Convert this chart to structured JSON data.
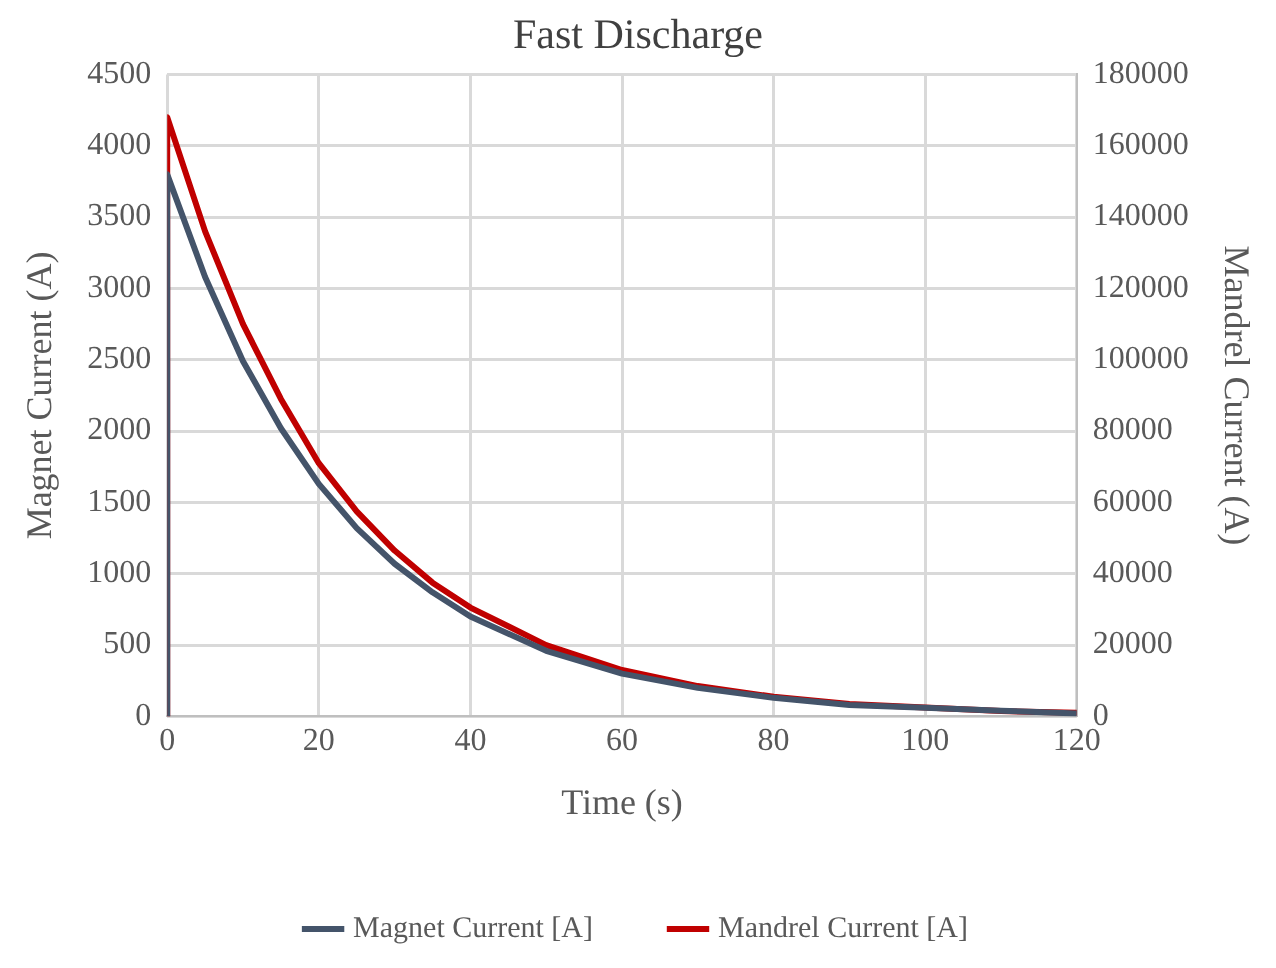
{
  "chart_data": {
    "type": "line",
    "title": "Fast Discharge",
    "xlabel": "Time (s)",
    "ylabel": "Magnet Current (A)",
    "y2label": "Mandrel Current (A)",
    "xlim": [
      0,
      120
    ],
    "xticks": [
      0,
      20,
      40,
      60,
      80,
      100,
      120
    ],
    "ylim": [
      0,
      4500
    ],
    "yticks": [
      0,
      500,
      1000,
      1500,
      2000,
      2500,
      3000,
      3500,
      4000,
      4500
    ],
    "y2lim": [
      0,
      180000
    ],
    "y2ticks": [
      0,
      20000,
      40000,
      60000,
      80000,
      100000,
      120000,
      140000,
      160000,
      180000
    ],
    "grid": true,
    "legend": "bottom",
    "marker": "none",
    "line_style": "solid",
    "series": [
      {
        "name": "Magnet Current [A]",
        "color": "#44546a",
        "x": [
          0,
          0,
          5,
          10,
          15,
          20,
          25,
          30,
          35,
          40,
          50,
          60,
          70,
          80,
          90,
          100,
          110,
          120
        ],
        "values": [
          0,
          3800,
          3080,
          2490,
          2020,
          1630,
          1320,
          1070,
          870,
          700,
          460,
          300,
          200,
          130,
          80,
          60,
          40,
          20
        ]
      },
      {
        "name": "Mandrel Current [A]",
        "color": "#c00000",
        "axis": "y2",
        "x": [
          0,
          0,
          5,
          10,
          15,
          20,
          25,
          30,
          35,
          40,
          50,
          60,
          70,
          80,
          90,
          100,
          110,
          120
        ],
        "values": [
          0,
          168000,
          136000,
          110000,
          89000,
          71000,
          57500,
          46500,
          37500,
          30500,
          20000,
          13000,
          8500,
          5500,
          3500,
          2500,
          1500,
          1000
        ]
      }
    ]
  }
}
